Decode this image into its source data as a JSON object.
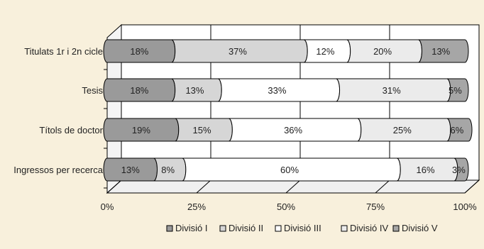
{
  "chart_data": {
    "type": "bar",
    "orientation": "horizontal",
    "stacked": true,
    "percent": true,
    "categories": [
      "Titulats 1r i 2n cicle",
      "Tesis",
      "Títols de doctor",
      "Ingressos per recerca"
    ],
    "series": [
      {
        "name": "Divisió I",
        "values": [
          18,
          18,
          19,
          13
        ],
        "labels": [
          "18%",
          "18%",
          "19%",
          "13%"
        ],
        "color": "#9a9a9a"
      },
      {
        "name": "Divisió II",
        "values": [
          37,
          13,
          15,
          8
        ],
        "labels": [
          "37%",
          "13%",
          "15%",
          "8%"
        ],
        "color": "#d6d6d6"
      },
      {
        "name": "Divisió III",
        "values": [
          12,
          33,
          36,
          60
        ],
        "labels": [
          "12%",
          "33%",
          "36%",
          "60%"
        ],
        "color": "#ffffff"
      },
      {
        "name": "Divisió IV",
        "values": [
          20,
          31,
          25,
          16
        ],
        "labels": [
          "20%",
          "31%",
          "25%",
          "16%"
        ],
        "color": "#ebebeb"
      },
      {
        "name": "Divisió V",
        "values": [
          13,
          5,
          6,
          3
        ],
        "labels": [
          "13%",
          "5%",
          "6%",
          "3%"
        ],
        "color": "#a6a6a6"
      }
    ],
    "x_ticks": [
      "0%",
      "25%",
      "50%",
      "75%",
      "100%"
    ],
    "xlim": [
      0,
      100
    ],
    "grid": true,
    "legend": "bottom"
  }
}
